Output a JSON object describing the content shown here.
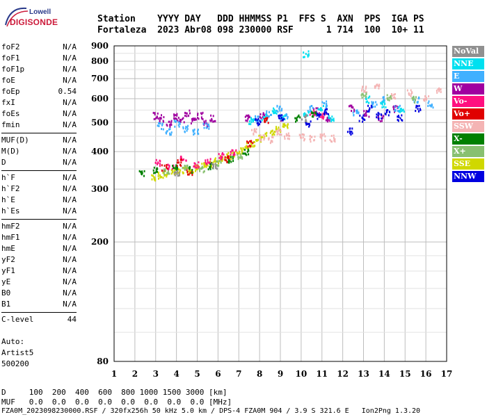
{
  "logo": {
    "line1": "Lowell",
    "line2": "DIGISONDE"
  },
  "header": {
    "labels": "Station    YYYY DAY   DDD HHMMSS P1  FFS S  AXN  PPS  IGA PS",
    "values": "Fortaleza  2023 Abr08 098 230000 RSF      1 714  100  10+ 11"
  },
  "params": {
    "group1": [
      {
        "name": "foF2",
        "value": "N/A"
      },
      {
        "name": "foF1",
        "value": "N/A"
      },
      {
        "name": "foF1p",
        "value": "N/A"
      },
      {
        "name": "foE",
        "value": "N/A"
      },
      {
        "name": "foEp",
        "value": "0.54"
      },
      {
        "name": "fxI",
        "value": "N/A"
      },
      {
        "name": "foEs",
        "value": "N/A"
      },
      {
        "name": "fmin",
        "value": "N/A"
      }
    ],
    "group2": [
      {
        "name": "MUF(D)",
        "value": "N/A"
      },
      {
        "name": "M(D)",
        "value": "N/A"
      },
      {
        "name": "D",
        "value": "N/A"
      }
    ],
    "group3": [
      {
        "name": "h`F",
        "value": "N/A"
      },
      {
        "name": "h`F2",
        "value": "N/A"
      },
      {
        "name": "h`E",
        "value": "N/A"
      },
      {
        "name": "h`Es",
        "value": "N/A"
      }
    ],
    "group4": [
      {
        "name": "hmF2",
        "value": "N/A"
      },
      {
        "name": "hmF1",
        "value": "N/A"
      },
      {
        "name": "hmE",
        "value": "N/A"
      },
      {
        "name": "yF2",
        "value": "N/A"
      },
      {
        "name": "yF1",
        "value": "N/A"
      },
      {
        "name": "yE",
        "value": "N/A"
      },
      {
        "name": "B0",
        "value": "N/A"
      },
      {
        "name": "B1",
        "value": "N/A"
      }
    ],
    "clevel": {
      "name": "C-level",
      "value": "44"
    }
  },
  "auto": {
    "line1": "Auto:",
    "line2": "Artist5",
    "line3": "500200"
  },
  "footer": {
    "d_row": "D     100  200  400  600  800 1000 1500 3000 [km]",
    "muf_row": "MUF   0.0  0.0  0.0  0.0  0.0  0.0  0.0  0.0 [MHz]",
    "file_line": "FZA0M_2023098230000.RSF / 320fx256h 50 kHz 5.0 km / DPS-4 FZA0M 904 / 3.9 S 321.6 E   Ion2Png 1.3.20"
  },
  "chart_data": {
    "type": "scatter",
    "xlim": [
      1,
      17
    ],
    "ylim": [
      80,
      900
    ],
    "x_ticks": [
      "1",
      "2",
      "3",
      "4",
      "5",
      "6",
      "7",
      "8",
      "9",
      "10",
      "11",
      "12",
      "13",
      "14",
      "15",
      "16",
      "17"
    ],
    "y_ticks": [
      "80",
      "200",
      "300",
      "400",
      "500",
      "600",
      "700",
      "800",
      "900"
    ],
    "y_scale": "log",
    "grid": true,
    "legend_position": "right",
    "legend": [
      {
        "label": "NoVal",
        "color": "#909090"
      },
      {
        "label": "NNE",
        "color": "#00e0f0"
      },
      {
        "label": "E",
        "color": "#40b0ff"
      },
      {
        "label": "W",
        "color": "#a000a0"
      },
      {
        "label": "Vo-",
        "color": "#ff1080"
      },
      {
        "label": "Vo+",
        "color": "#e00000"
      },
      {
        "label": "SSW",
        "color": "#f4b4b4"
      },
      {
        "label": "X-",
        "color": "#008000"
      },
      {
        "label": "X+",
        "color": "#88c070"
      },
      {
        "label": "SSE",
        "color": "#d0d800"
      },
      {
        "label": "NNW",
        "color": "#0000e0"
      }
    ],
    "clusters": [
      {
        "series": "SSE",
        "x": [
          2.9,
          3.2,
          3.5,
          3.8,
          4.1,
          4.4,
          4.7,
          5.0,
          5.3,
          5.6,
          5.9,
          6.2,
          6.5,
          6.8,
          7.1,
          7.4,
          7.7,
          8.0,
          8.3,
          8.6,
          8.9,
          9.2
        ],
        "y": [
          330,
          335,
          340,
          345,
          345,
          350,
          350,
          355,
          360,
          365,
          375,
          385,
          390,
          395,
          405,
          420,
          430,
          445,
          455,
          465,
          480,
          490
        ]
      },
      {
        "series": "W",
        "x": [
          3.0,
          3.3,
          3.6,
          3.9,
          4.2,
          4.5,
          4.8,
          5.1,
          5.4,
          5.7,
          7.4,
          8.1,
          9.0,
          10.7,
          11.3,
          12.4,
          13.1,
          13.8,
          14.5
        ],
        "y": [
          530,
          520,
          500,
          525,
          515,
          540,
          510,
          530,
          500,
          520,
          520,
          530,
          520,
          550,
          520,
          560,
          540,
          520,
          560
        ]
      },
      {
        "series": "E",
        "x": [
          3.2,
          3.6,
          4.0,
          4.4,
          4.9,
          5.4,
          7.8,
          8.4,
          8.9,
          9.2,
          10.4,
          11.1,
          12.6,
          13.5,
          14.0,
          14.6,
          15.5,
          16.2
        ],
        "y": [
          490,
          470,
          500,
          480,
          470,
          490,
          520,
          540,
          560,
          530,
          560,
          580,
          540,
          580,
          600,
          560,
          600,
          580
        ]
      },
      {
        "series": "NNE",
        "x": [
          7.6,
          8.2,
          8.7,
          9.1,
          10.2,
          10.9,
          11.4,
          13.2,
          13.9,
          14.8,
          10.2
        ],
        "y": [
          510,
          525,
          550,
          520,
          540,
          560,
          520,
          600,
          580,
          560,
          850
        ]
      },
      {
        "series": "SSW",
        "x": [
          7.7,
          8.1,
          8.5,
          8.9,
          9.3,
          10.0,
          10.5,
          11.0,
          11.5,
          13.0,
          13.6,
          14.4,
          15.2,
          16.0,
          16.6
        ],
        "y": [
          470,
          450,
          440,
          470,
          455,
          450,
          445,
          450,
          445,
          650,
          660,
          620,
          630,
          610,
          640
        ]
      },
      {
        "series": "Vo-",
        "x": [
          3.1,
          3.7,
          4.3,
          4.9,
          5.5,
          6.1,
          6.7,
          10.5,
          11.0
        ],
        "y": [
          370,
          360,
          380,
          365,
          375,
          390,
          400,
          540,
          530
        ]
      },
      {
        "series": "Vo+",
        "x": [
          3.4,
          4.1,
          4.6,
          6.4,
          7.5,
          8.3
        ],
        "y": [
          355,
          370,
          345,
          380,
          430,
          510
        ]
      },
      {
        "series": "NNW",
        "x": [
          7.9,
          9.0,
          10.3,
          10.8,
          11.2,
          12.3,
          12.9,
          13.3,
          13.7,
          14.1,
          14.7,
          15.6
        ],
        "y": [
          505,
          520,
          500,
          530,
          545,
          470,
          520,
          560,
          530,
          545,
          520,
          560
        ]
      },
      {
        "series": "X-",
        "x": [
          2.3,
          3.0,
          3.9,
          4.7,
          5.6,
          6.6,
          7.3,
          9.8,
          10.6
        ],
        "y": [
          340,
          350,
          355,
          350,
          360,
          380,
          400,
          520,
          540
        ]
      },
      {
        "series": "X+",
        "x": [
          3.5,
          4.4,
          5.2,
          6.0,
          7.0,
          13.0,
          14.2,
          15.4
        ],
        "y": [
          345,
          355,
          350,
          370,
          390,
          620,
          610,
          600
        ]
      },
      {
        "series": "NoVal",
        "x": [
          4.0,
          5.8,
          10.1
        ],
        "y": [
          340,
          360,
          520
        ]
      }
    ]
  }
}
